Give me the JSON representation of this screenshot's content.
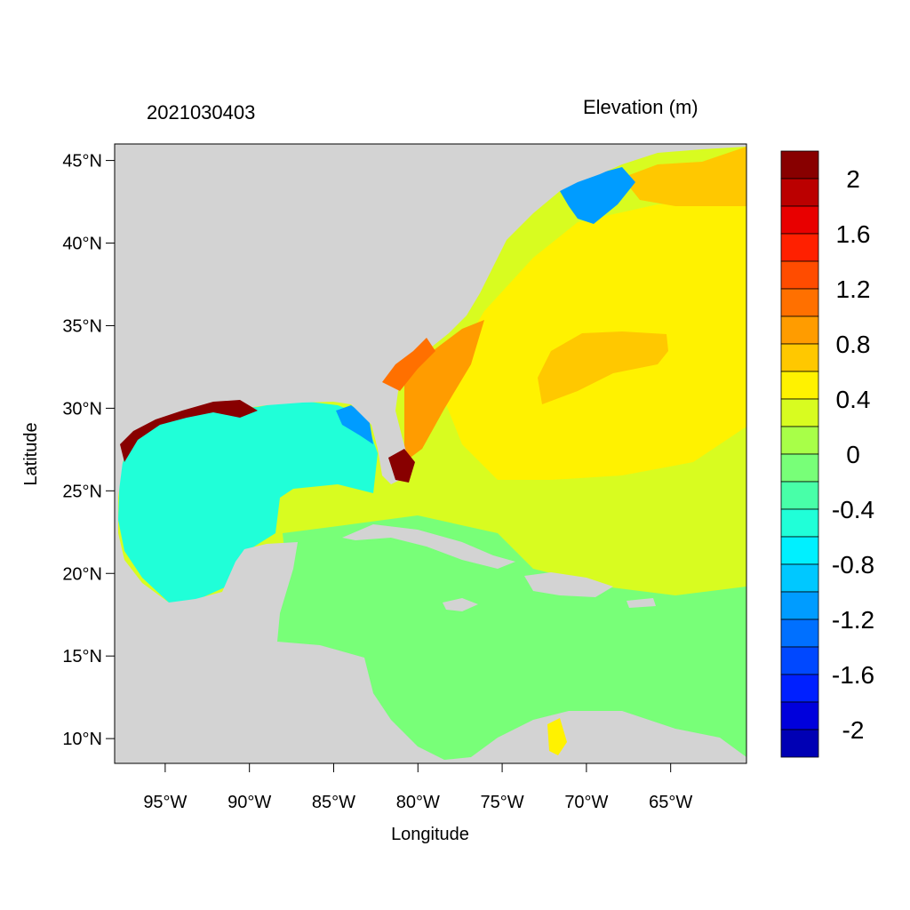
{
  "date_label": "2021030403",
  "variable_label": "Elevation (m)",
  "axes": {
    "xlabel": "Longitude",
    "ylabel": "Latitude",
    "lon_range": [
      -98,
      -60.5
    ],
    "lat_range": [
      8.5,
      46
    ],
    "xticks": [
      {
        "value": -95,
        "label": "95°W"
      },
      {
        "value": -90,
        "label": "90°W"
      },
      {
        "value": -85,
        "label": "85°W"
      },
      {
        "value": -80,
        "label": "80°W"
      },
      {
        "value": -75,
        "label": "75°W"
      },
      {
        "value": -70,
        "label": "70°W"
      },
      {
        "value": -65,
        "label": "65°W"
      }
    ],
    "yticks": [
      {
        "value": 45,
        "label": "45°N"
      },
      {
        "value": 40,
        "label": "40°N"
      },
      {
        "value": 35,
        "label": "35°N"
      },
      {
        "value": 30,
        "label": "30°N"
      },
      {
        "value": 25,
        "label": "25°N"
      },
      {
        "value": 20,
        "label": "20°N"
      },
      {
        "value": 15,
        "label": "15°N"
      },
      {
        "value": 10,
        "label": "10°N"
      }
    ]
  },
  "colorbar": {
    "colors": [
      "#880000",
      "#bb0000",
      "#e80000",
      "#ff2000",
      "#ff4c00",
      "#ff7000",
      "#ff9c00",
      "#ffc800",
      "#fff200",
      "#d8fc20",
      "#a8ff48",
      "#78ff78",
      "#48ffa8",
      "#20ffd8",
      "#00f0ff",
      "#00c8ff",
      "#009cff",
      "#0070ff",
      "#0048ff",
      "#0020ff",
      "#0000dc",
      "#0000b4"
    ],
    "labels": [
      "2",
      "1.6",
      "1.2",
      "0.8",
      "0.4",
      "0",
      "-0.4",
      "-0.8",
      "-1.2",
      "-1.6",
      "-2"
    ]
  },
  "colors": {
    "land": "#d3d3d3",
    "ocean_base": "#d8fc20",
    "gulf": "#20ffd8",
    "caribbean": "#78ff78",
    "atlantic_high": "#fff200",
    "sargasso_bulge": "#ffc800",
    "surge": "#880000"
  }
}
